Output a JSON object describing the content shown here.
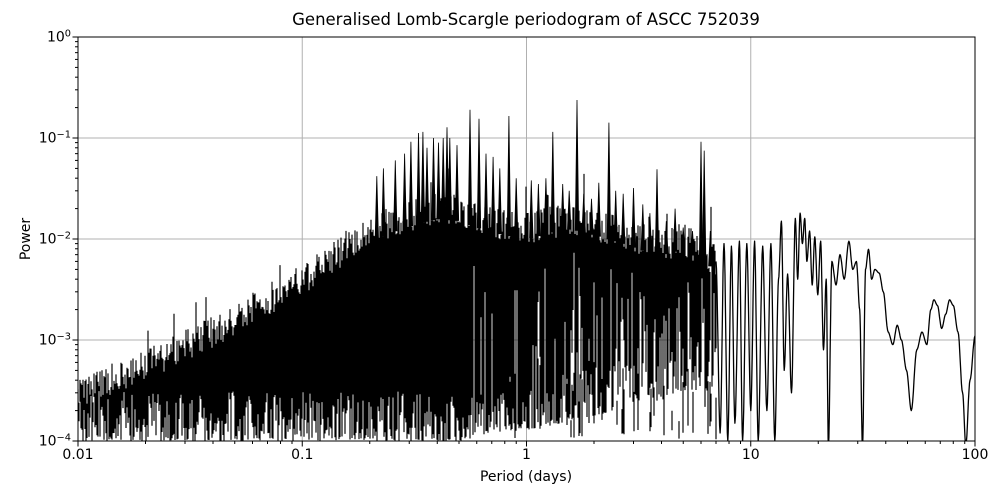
{
  "chart_data": {
    "type": "line",
    "title": "Generalised Lomb-Scargle periodogram of ASCC 752039",
    "xlabel": "Period (days)",
    "ylabel": "Power",
    "xscale": "log",
    "yscale": "log",
    "xlim": [
      0.01,
      100
    ],
    "ylim": [
      0.0001,
      1
    ],
    "grid": true,
    "legend": false,
    "colors": {
      "line": "#000000",
      "grid": "#b0b0b0",
      "background": "#ffffff",
      "text": "#000000"
    },
    "xticks": [
      {
        "label": "0.01",
        "value": 0.01
      },
      {
        "label": "0.1",
        "value": 0.1
      },
      {
        "label": "1",
        "value": 1
      },
      {
        "label": "10",
        "value": 10
      },
      {
        "label": "100",
        "value": 100
      }
    ],
    "yticks": [
      {
        "mantissa": "10",
        "exp": "0",
        "value": 1
      },
      {
        "mantissa": "10",
        "exp": "−1",
        "value": 0.1
      },
      {
        "mantissa": "10",
        "exp": "−2",
        "value": 0.01
      },
      {
        "mantissa": "10",
        "exp": "−3",
        "value": 0.001
      },
      {
        "mantissa": "10",
        "exp": "−4",
        "value": 0.0001
      }
    ],
    "major_peaks": [
      {
        "period": 0.215,
        "power": 0.042
      },
      {
        "period": 0.23,
        "power": 0.05
      },
      {
        "period": 0.26,
        "power": 0.06
      },
      {
        "period": 0.286,
        "power": 0.07
      },
      {
        "period": 0.305,
        "power": 0.092
      },
      {
        "period": 0.33,
        "power": 0.112
      },
      {
        "period": 0.345,
        "power": 0.115
      },
      {
        "period": 0.36,
        "power": 0.08
      },
      {
        "period": 0.385,
        "power": 0.1
      },
      {
        "period": 0.405,
        "power": 0.09
      },
      {
        "period": 0.425,
        "power": 0.1
      },
      {
        "period": 0.442,
        "power": 0.128
      },
      {
        "period": 0.455,
        "power": 0.1
      },
      {
        "period": 0.49,
        "power": 0.085
      },
      {
        "period": 0.56,
        "power": 0.19
      },
      {
        "period": 0.614,
        "power": 0.155
      },
      {
        "period": 0.66,
        "power": 0.07
      },
      {
        "period": 0.71,
        "power": 0.065
      },
      {
        "period": 0.76,
        "power": 0.05
      },
      {
        "period": 0.835,
        "power": 0.165
      },
      {
        "period": 0.9,
        "power": 0.04
      },
      {
        "period": 1.05,
        "power": 0.038
      },
      {
        "period": 1.13,
        "power": 0.035
      },
      {
        "period": 1.22,
        "power": 0.04
      },
      {
        "period": 1.31,
        "power": 0.115
      },
      {
        "period": 1.45,
        "power": 0.035
      },
      {
        "period": 1.55,
        "power": 0.03
      },
      {
        "period": 1.68,
        "power": 0.238
      },
      {
        "period": 1.8,
        "power": 0.028
      },
      {
        "period": 1.95,
        "power": 0.025
      },
      {
        "period": 2.1,
        "power": 0.036
      },
      {
        "period": 2.33,
        "power": 0.142
      },
      {
        "period": 2.5,
        "power": 0.03
      },
      {
        "period": 2.7,
        "power": 0.028
      },
      {
        "period": 3.0,
        "power": 0.032
      },
      {
        "period": 3.3,
        "power": 0.022
      },
      {
        "period": 3.55,
        "power": 0.018
      },
      {
        "period": 3.82,
        "power": 0.049
      },
      {
        "period": 4.2,
        "power": 0.015
      },
      {
        "period": 4.6,
        "power": 0.02
      },
      {
        "period": 5.0,
        "power": 0.013
      },
      {
        "period": 5.5,
        "power": 0.012
      },
      {
        "period": 6.0,
        "power": 0.092
      },
      {
        "period": 6.2,
        "power": 0.075
      },
      {
        "period": 6.6,
        "power": 0.012
      }
    ],
    "dense_region": {
      "log10_period": [
        -2.0,
        -1.8,
        -1.6,
        -1.4,
        -1.2,
        -1.0,
        -0.85,
        -0.7,
        -0.6,
        -0.5,
        -0.4,
        -0.3,
        -0.2,
        -0.1,
        0.0,
        0.1,
        0.2,
        0.3,
        0.4,
        0.5,
        0.6,
        0.7,
        0.78,
        0.845
      ],
      "upper_log10_power": [
        -3.52,
        -3.35,
        -3.15,
        -2.92,
        -2.66,
        -2.4,
        -2.17,
        -1.95,
        -1.83,
        -1.76,
        -1.7,
        -1.72,
        -1.8,
        -1.86,
        -1.9,
        -1.84,
        -1.8,
        -1.86,
        -1.92,
        -2.0,
        -2.06,
        -2.0,
        -2.12,
        -2.2
      ],
      "lower_log10_power": [
        -4,
        -4,
        -4,
        -4,
        -4,
        -4,
        -4,
        -4,
        -4,
        -4,
        -4,
        -4,
        -3.95,
        -3.9,
        -3.9,
        -3.85,
        -3.8,
        -3.75,
        -3.7,
        -3.6,
        -3.6,
        -3.5,
        -3.5,
        -3.5
      ]
    },
    "smooth_tail": {
      "period": [
        7.0,
        7.3,
        7.6,
        7.9,
        8.2,
        8.5,
        8.9,
        9.2,
        9.6,
        10.0,
        10.4,
        10.8,
        11.3,
        11.8,
        12.3,
        12.8,
        13.3,
        13.7,
        14.1,
        14.6,
        15.2,
        15.8,
        16.2,
        16.6,
        17.0,
        17.4,
        17.8,
        18.3,
        18.8,
        19.3,
        19.9,
        20.5,
        21.1,
        21.7,
        22.2,
        23.0,
        24.0,
        25.0,
        26.1,
        27.4,
        28.5,
        29.6,
        30.6,
        31.5,
        32.5,
        33.5,
        34.6,
        35.8,
        37.4,
        39.0,
        41.0,
        43.0,
        45.0,
        47.0,
        49.5,
        52.0,
        55.0,
        58.0,
        61.0,
        63.5,
        65.6,
        68.0,
        71.0,
        74.0,
        77.0,
        80.0,
        84.0,
        88.0,
        91.0,
        95.0,
        100.0
      ],
      "power": [
        0.006,
        0.00012,
        0.009,
        0.0001,
        0.0085,
        0.00015,
        0.0095,
        0.0001,
        0.009,
        0.0002,
        0.0095,
        0.0001,
        0.0085,
        0.0002,
        0.009,
        0.0001,
        0.004,
        0.015,
        0.0005,
        0.0045,
        0.0003,
        0.016,
        0.004,
        0.018,
        0.009,
        0.016,
        0.006,
        0.012,
        0.0035,
        0.0105,
        0.0028,
        0.0095,
        0.0008,
        0.004,
        9e-05,
        0.006,
        0.0035,
        0.007,
        0.004,
        0.0095,
        0.005,
        0.006,
        0.002,
        9e-05,
        0.005,
        0.0079,
        0.004,
        0.005,
        0.0046,
        0.003,
        0.0012,
        0.0009,
        0.0014,
        0.001,
        0.0005,
        0.0002,
        0.0008,
        0.0012,
        0.0009,
        0.002,
        0.0025,
        0.0022,
        0.0013,
        0.0018,
        0.0025,
        0.0022,
        0.0012,
        0.0003,
        9e-05,
        0.0004,
        0.0011
      ]
    }
  }
}
